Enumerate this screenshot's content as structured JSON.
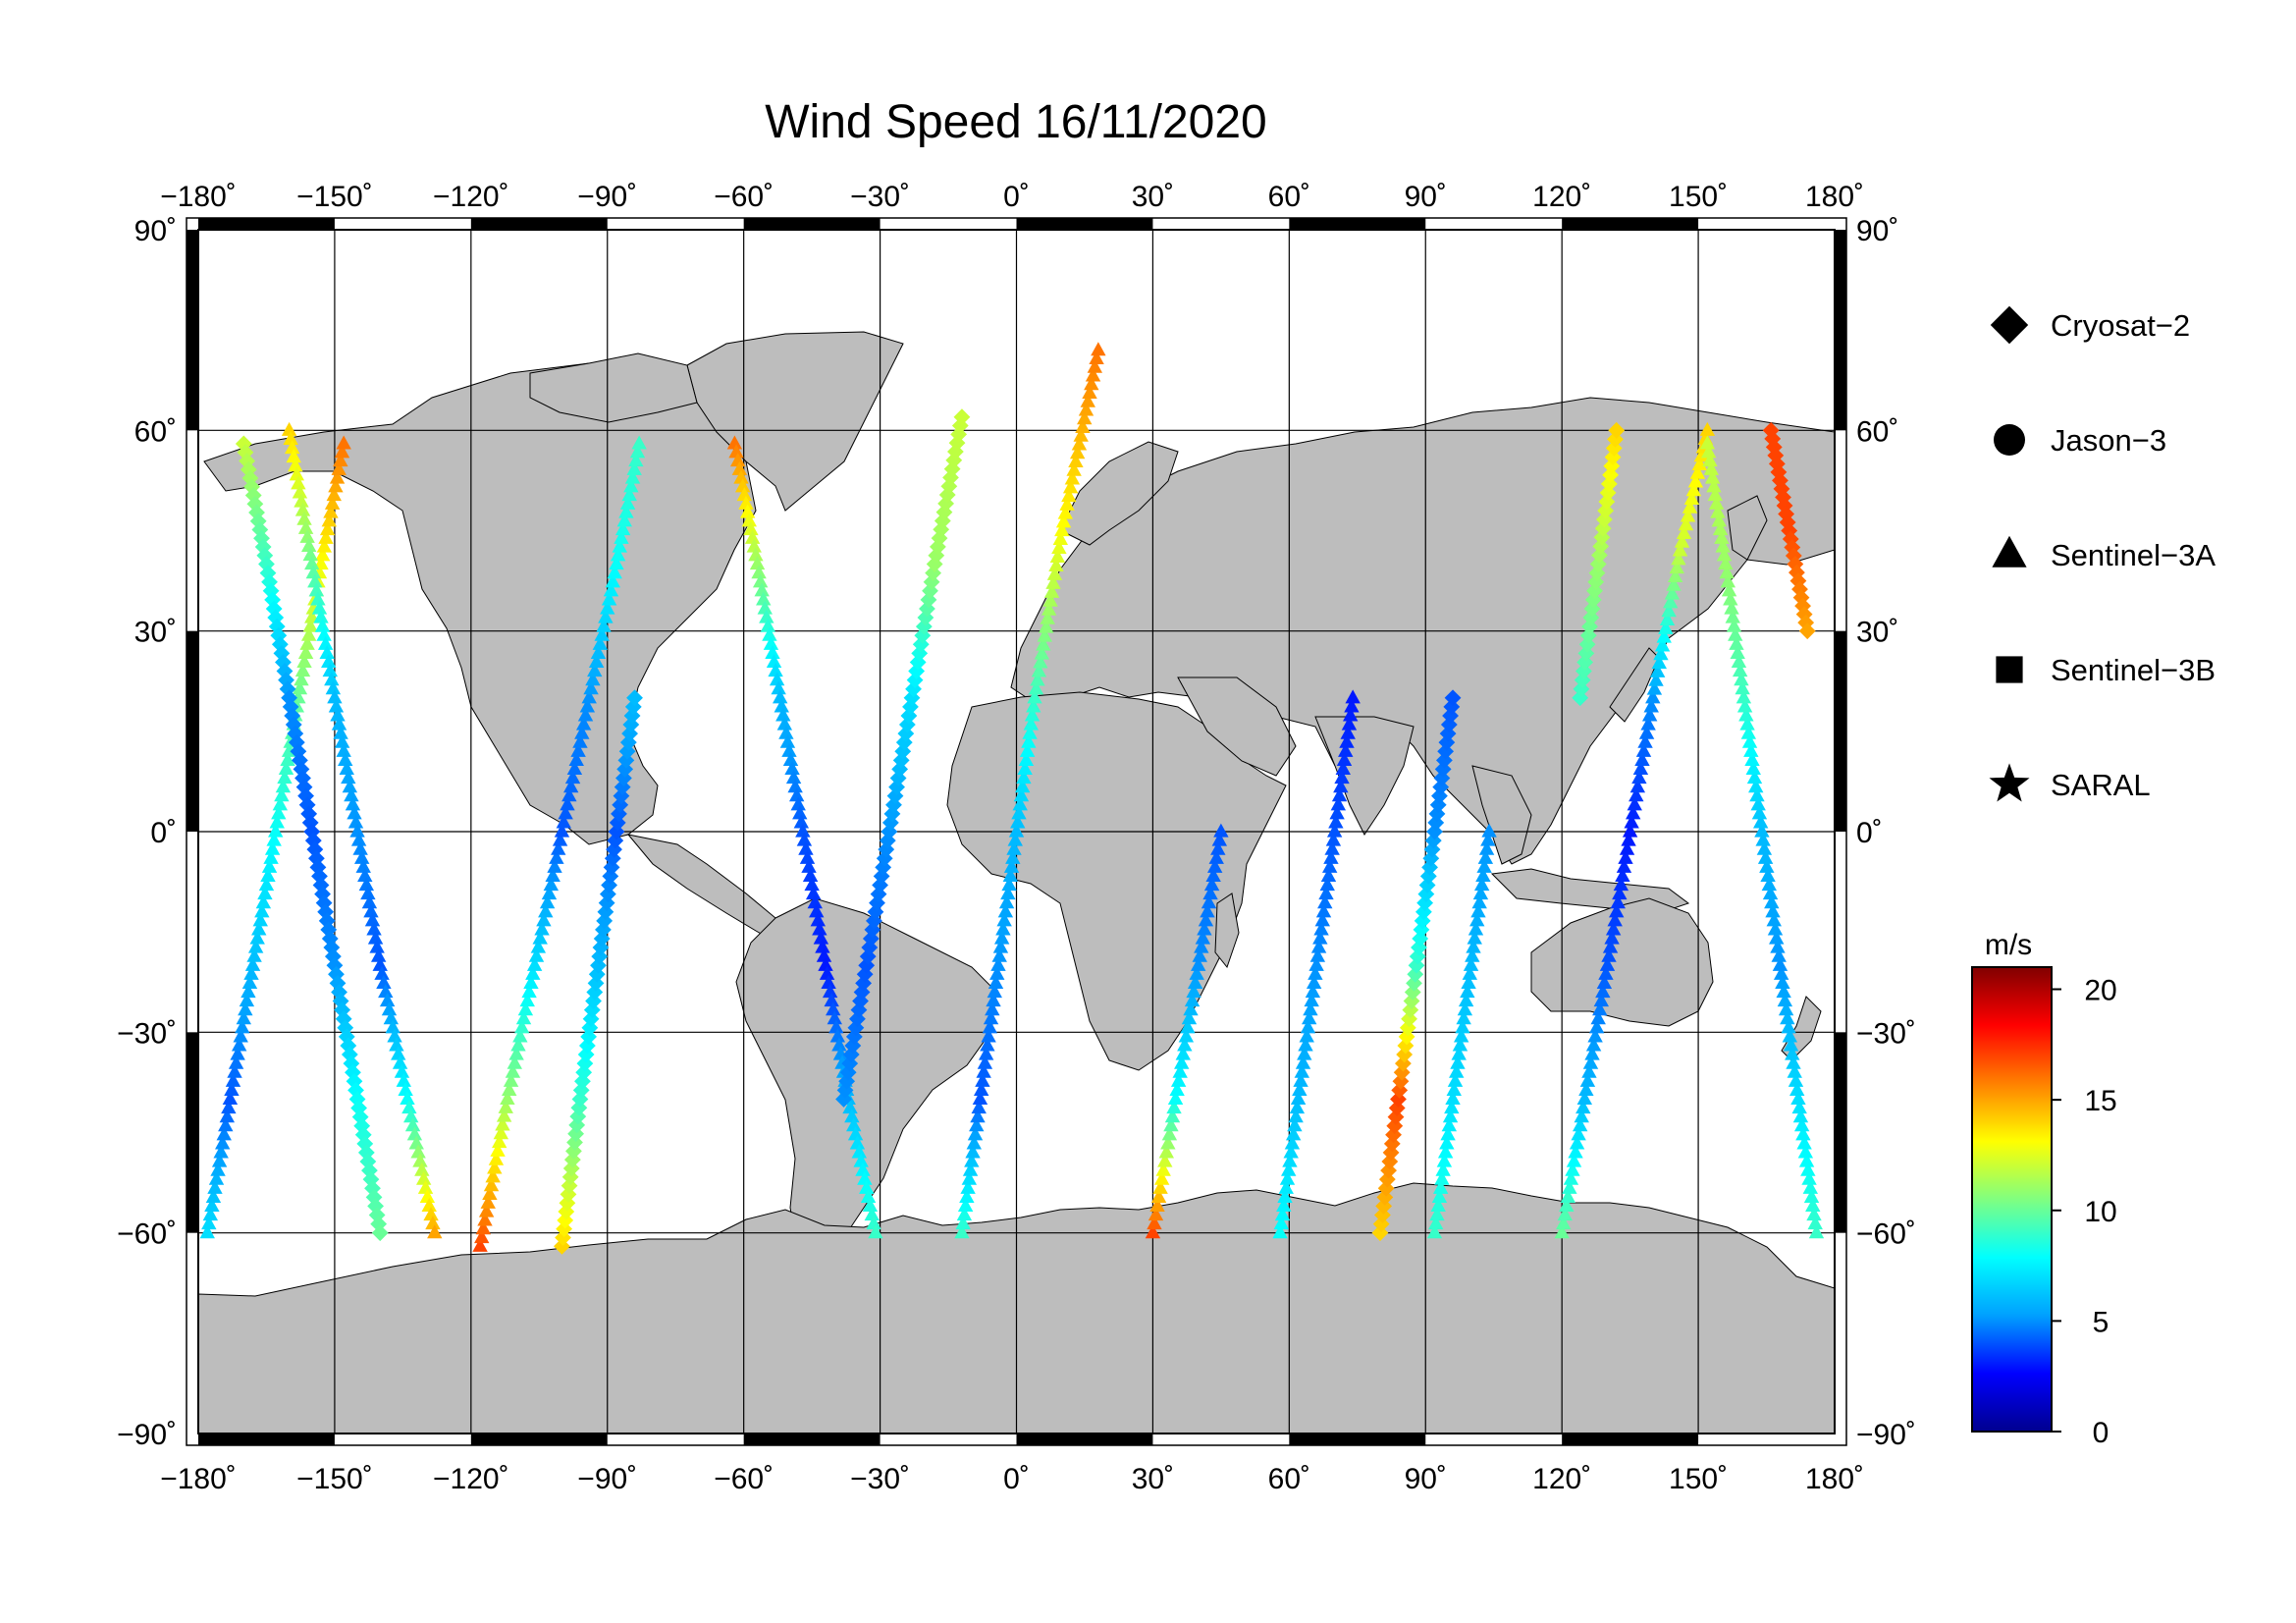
{
  "title": "Wind Speed 16/11/2020",
  "map": {
    "lon_ticks": [
      {
        "value": -180,
        "label": "−180˚"
      },
      {
        "value": -150,
        "label": "−150˚"
      },
      {
        "value": -120,
        "label": "−120˚"
      },
      {
        "value": -90,
        "label": "−90˚"
      },
      {
        "value": -60,
        "label": "−60˚"
      },
      {
        "value": -30,
        "label": "−30˚"
      },
      {
        "value": 0,
        "label": "0˚"
      },
      {
        "value": 30,
        "label": "30˚"
      },
      {
        "value": 60,
        "label": "60˚"
      },
      {
        "value": 90,
        "label": "90˚"
      },
      {
        "value": 120,
        "label": "120˚"
      },
      {
        "value": 150,
        "label": "150˚"
      },
      {
        "value": 180,
        "label": "180˚"
      }
    ],
    "lat_ticks": [
      {
        "value": 90,
        "label": "90˚"
      },
      {
        "value": 60,
        "label": "60˚"
      },
      {
        "value": 30,
        "label": "30˚"
      },
      {
        "value": 0,
        "label": "0˚"
      },
      {
        "value": -30,
        "label": "−30˚"
      },
      {
        "value": -60,
        "label": "−60˚"
      },
      {
        "value": -90,
        "label": "−90˚"
      }
    ],
    "land_color": "#bdbdbd",
    "ocean_color": "#ffffff",
    "grid": true
  },
  "legend": {
    "items": [
      {
        "shape": "diamond",
        "label": "Cryosat−2"
      },
      {
        "shape": "circle",
        "label": "Jason−3"
      },
      {
        "shape": "triangle",
        "label": "Sentinel−3A"
      },
      {
        "shape": "square",
        "label": "Sentinel−3B"
      },
      {
        "shape": "star",
        "label": "SARAL"
      }
    ]
  },
  "colorbar": {
    "unit": "m/s",
    "min": 0,
    "max": 21,
    "ticks": [
      {
        "value": 20,
        "label": "20"
      },
      {
        "value": 15,
        "label": "15"
      },
      {
        "value": 10,
        "label": "10"
      },
      {
        "value": 5,
        "label": "5"
      },
      {
        "value": 0,
        "label": "0"
      }
    ],
    "colors": [
      "#00008f",
      "#0000ff",
      "#00a0ff",
      "#00ffff",
      "#80ff80",
      "#ffff00",
      "#ff8000",
      "#ff0000",
      "#800000"
    ]
  },
  "chart_data": {
    "type": "scatter",
    "title": "Wind Speed 16/11/2020",
    "xlim": [
      -180,
      180
    ],
    "ylim": [
      -90,
      90
    ],
    "colorbar_label": "m/s",
    "satellites": [
      "Cryosat−2",
      "Jason−3",
      "Sentinel−3A",
      "Sentinel−3B",
      "SARAL"
    ],
    "tracks": [
      {
        "satellite": "Sentinel−3A",
        "points": [
          [
            -178,
            -60,
            7
          ],
          [
            -173,
            -40,
            4
          ],
          [
            -168,
            -20,
            6
          ],
          [
            -163,
            0,
            8
          ],
          [
            -158,
            20,
            10
          ],
          [
            -153,
            40,
            13
          ],
          [
            -148,
            58,
            16
          ]
        ]
      },
      {
        "satellite": "Sentinel−3A",
        "points": [
          [
            -160,
            60,
            14
          ],
          [
            -155,
            40,
            10
          ],
          [
            -150,
            20,
            6
          ],
          [
            -145,
            0,
            5
          ],
          [
            -140,
            -20,
            4
          ],
          [
            -134,
            -40,
            8
          ],
          [
            -128,
            -60,
            15
          ]
        ]
      },
      {
        "satellite": "Sentinel−3A",
        "points": [
          [
            -118,
            -62,
            17
          ],
          [
            -112,
            -40,
            11
          ],
          [
            -106,
            -20,
            7
          ],
          [
            -100,
            0,
            4
          ],
          [
            -94,
            20,
            5
          ],
          [
            -88,
            40,
            8
          ],
          [
            -83,
            58,
            9
          ]
        ]
      },
      {
        "satellite": "Sentinel−3A",
        "points": [
          [
            -62,
            58,
            16
          ],
          [
            -57,
            40,
            11
          ],
          [
            -52,
            20,
            6
          ],
          [
            -47,
            0,
            4
          ],
          [
            -42,
            -20,
            3
          ],
          [
            -37,
            -40,
            6
          ],
          [
            -31,
            -60,
            9
          ]
        ]
      },
      {
        "satellite": "Sentinel−3A",
        "points": [
          [
            -12,
            -60,
            9
          ],
          [
            -8,
            -40,
            4
          ],
          [
            -4,
            -20,
            5
          ],
          [
            0,
            0,
            6
          ],
          [
            4,
            20,
            9
          ],
          [
            10,
            45,
            13
          ],
          [
            18,
            72,
            16
          ]
        ]
      },
      {
        "satellite": "Sentinel−3A",
        "points": [
          [
            30,
            -60,
            17
          ],
          [
            35,
            -40,
            8
          ],
          [
            40,
            -20,
            5
          ],
          [
            45,
            0,
            4
          ]
        ]
      },
      {
        "satellite": "Sentinel−3A",
        "points": [
          [
            58,
            -60,
            8
          ],
          [
            62,
            -40,
            6
          ],
          [
            66,
            -20,
            5
          ],
          [
            70,
            0,
            4
          ],
          [
            74,
            20,
            3
          ]
        ]
      },
      {
        "satellite": "Sentinel−3A",
        "points": [
          [
            92,
            -60,
            9
          ],
          [
            96,
            -40,
            7
          ],
          [
            100,
            -20,
            6
          ],
          [
            104,
            0,
            5
          ]
        ]
      },
      {
        "satellite": "Sentinel−3A",
        "points": [
          [
            120,
            -60,
            10
          ],
          [
            125,
            -40,
            6
          ],
          [
            130,
            -20,
            4
          ],
          [
            135,
            0,
            3
          ],
          [
            140,
            20,
            5
          ],
          [
            146,
            42,
            12
          ],
          [
            152,
            60,
            14
          ]
        ]
      },
      {
        "satellite": "Sentinel−3A",
        "points": [
          [
            176,
            -60,
            9
          ],
          [
            172,
            -40,
            7
          ],
          [
            168,
            -20,
            5
          ],
          [
            164,
            0,
            6
          ],
          [
            160,
            20,
            9
          ],
          [
            156,
            40,
            11
          ],
          [
            152,
            58,
            12
          ]
        ]
      },
      {
        "satellite": "Cryosat−2",
        "points": [
          [
            -170,
            58,
            12
          ],
          [
            -165,
            40,
            9
          ],
          [
            -160,
            20,
            5
          ],
          [
            -155,
            0,
            4
          ],
          [
            -150,
            -20,
            5
          ],
          [
            -145,
            -40,
            8
          ],
          [
            -140,
            -60,
            10
          ]
        ]
      },
      {
        "satellite": "Cryosat−2",
        "points": [
          [
            -100,
            -62,
            14
          ],
          [
            -96,
            -40,
            9
          ],
          [
            -92,
            -20,
            6
          ],
          [
            -88,
            0,
            4
          ],
          [
            -84,
            20,
            6
          ]
        ]
      },
      {
        "satellite": "Cryosat−2",
        "points": [
          [
            -38,
            -40,
            5
          ],
          [
            -33,
            -20,
            4
          ],
          [
            -28,
            0,
            5
          ],
          [
            -23,
            20,
            7
          ],
          [
            -18,
            40,
            11
          ],
          [
            -12,
            62,
            12
          ]
        ]
      },
      {
        "satellite": "Cryosat−2",
        "points": [
          [
            80,
            -60,
            14
          ],
          [
            84,
            -40,
            17
          ],
          [
            88,
            -20,
            9
          ],
          [
            92,
            0,
            5
          ],
          [
            96,
            20,
            4
          ]
        ]
      },
      {
        "satellite": "Cryosat−2",
        "points": [
          [
            124,
            20,
            9
          ],
          [
            128,
            40,
            11
          ],
          [
            132,
            60,
            14
          ]
        ]
      },
      {
        "satellite": "Cryosat−2",
        "points": [
          [
            166,
            60,
            17
          ],
          [
            170,
            45,
            17
          ],
          [
            174,
            30,
            15
          ]
        ]
      }
    ]
  }
}
